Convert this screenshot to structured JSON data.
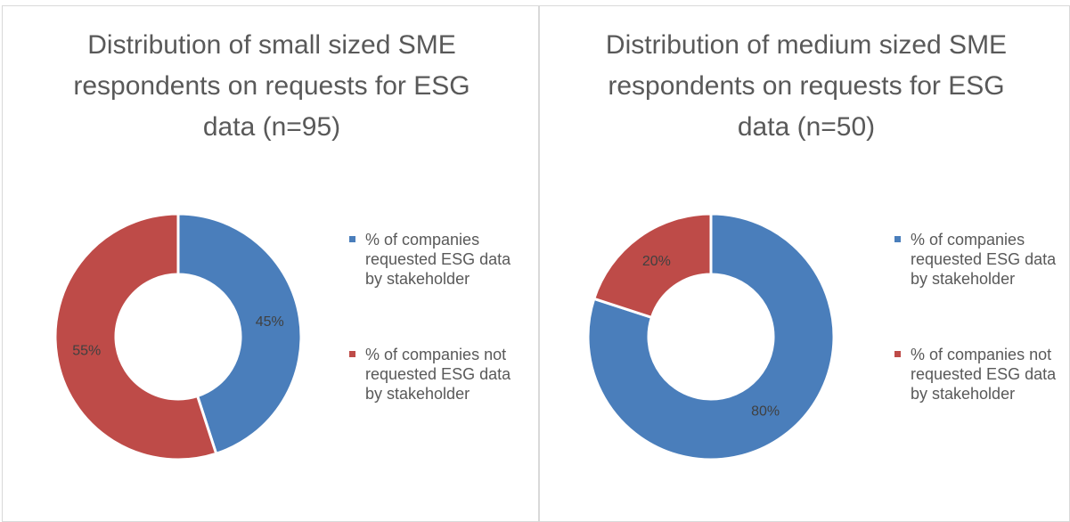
{
  "chart_data": [
    {
      "type": "pie",
      "title": "Distribution of small sized SME respondents on requests for ESG data (n=95)",
      "categories": [
        "% of companies requested ESG data by stakeholder",
        "% of companies not requested ESG data by stakeholder"
      ],
      "values": [
        45,
        55
      ],
      "value_labels": [
        "45%",
        "55%"
      ],
      "colors": [
        "#4a7ebb",
        "#be4b48"
      ]
    },
    {
      "type": "pie",
      "title": "Distribution of medium sized SME respondents on requests for ESG data (n=50)",
      "categories": [
        "% of companies requested ESG data by stakeholder",
        "% of companies not requested ESG data by stakeholder"
      ],
      "values": [
        80,
        20
      ],
      "value_labels": [
        "80%",
        "20%"
      ],
      "colors": [
        "#4a7ebb",
        "#be4b48"
      ]
    }
  ]
}
